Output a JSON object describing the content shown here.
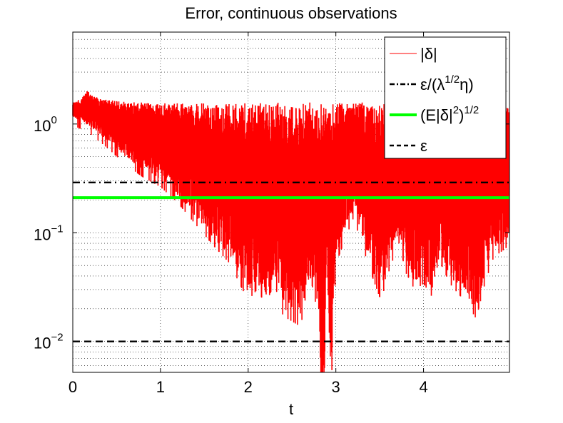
{
  "chart_data": {
    "type": "line",
    "title": "Error, continuous observations",
    "xlabel": "t",
    "ylabel": "",
    "xlim": [
      0,
      4.98
    ],
    "ylim": [
      0.0052,
      7.0
    ],
    "yscale": "log",
    "grid": true,
    "legend_position": "top-right",
    "x_ticks": [
      0,
      1,
      2,
      3,
      4
    ],
    "x_tick_labels": [
      "0",
      "1",
      "2",
      "3",
      "4"
    ],
    "y_ticks": [
      1,
      0.1,
      0.01
    ],
    "y_tick_labels": [
      {
        "base": "10",
        "exp": "0"
      },
      {
        "base": "10",
        "exp": "−1"
      },
      {
        "base": "10",
        "exp": "−2"
      }
    ],
    "series": [
      {
        "name": "|δ|",
        "kind": "noisy-band",
        "color": "#ff0000",
        "upper_envelope": [
          [
            0,
            1.6
          ],
          [
            0.1,
            1.7
          ],
          [
            0.17,
            2.1
          ],
          [
            0.3,
            1.7
          ],
          [
            0.6,
            1.6
          ],
          [
            1.0,
            1.55
          ],
          [
            1.5,
            1.55
          ],
          [
            2.0,
            1.55
          ],
          [
            2.5,
            1.6
          ],
          [
            3.0,
            1.55
          ],
          [
            3.5,
            1.6
          ],
          [
            4.0,
            1.6
          ],
          [
            4.5,
            1.55
          ],
          [
            4.98,
            1.4
          ]
        ],
        "lower_envelope": [
          [
            0,
            1.15
          ],
          [
            0.2,
            0.95
          ],
          [
            0.4,
            0.7
          ],
          [
            0.6,
            0.5
          ],
          [
            0.8,
            0.38
          ],
          [
            1.0,
            0.31
          ],
          [
            1.2,
            0.22
          ],
          [
            1.4,
            0.14
          ],
          [
            1.6,
            0.09
          ],
          [
            1.8,
            0.06
          ],
          [
            1.9,
            0.04
          ],
          [
            2.0,
            0.028
          ],
          [
            2.1,
            0.035
          ],
          [
            2.2,
            0.026
          ],
          [
            2.3,
            0.04
          ],
          [
            2.4,
            0.02
          ],
          [
            2.5,
            0.018
          ],
          [
            2.6,
            0.016
          ],
          [
            2.7,
            0.05
          ],
          [
            2.8,
            0.02
          ],
          [
            2.83,
            0.005
          ],
          [
            2.87,
            0.005
          ],
          [
            2.9,
            0.04
          ],
          [
            2.95,
            0.005
          ],
          [
            3.0,
            0.06
          ],
          [
            3.1,
            0.1
          ],
          [
            3.2,
            0.16
          ],
          [
            3.3,
            0.09
          ],
          [
            3.4,
            0.05
          ],
          [
            3.5,
            0.03
          ],
          [
            3.6,
            0.04
          ],
          [
            3.7,
            0.11
          ],
          [
            3.8,
            0.05
          ],
          [
            3.9,
            0.035
          ],
          [
            4.0,
            0.04
          ],
          [
            4.1,
            0.03
          ],
          [
            4.2,
            0.06
          ],
          [
            4.3,
            0.04
          ],
          [
            4.4,
            0.032
          ],
          [
            4.5,
            0.026
          ],
          [
            4.6,
            0.019
          ],
          [
            4.7,
            0.04
          ],
          [
            4.8,
            0.07
          ],
          [
            4.9,
            0.08
          ],
          [
            4.98,
            0.09
          ]
        ]
      },
      {
        "name": "ε/(λ^1/2η)",
        "kind": "hline",
        "value": 0.29,
        "color": "#000000",
        "dash": "dash-dot"
      },
      {
        "name": "(E|δ|^2)^1/2",
        "kind": "hline",
        "value": 0.21,
        "color": "#00ff00",
        "dash": "solid"
      },
      {
        "name": "ε",
        "kind": "hline",
        "value": 0.01,
        "color": "#000000",
        "dash": "dashed"
      }
    ]
  },
  "legend": {
    "entries": [
      {
        "parts": [
          {
            "t": "|δ|"
          }
        ]
      },
      {
        "parts": [
          {
            "t": "ε/(λ"
          },
          {
            "t": "1/2",
            "sup": true
          },
          {
            "t": "η)"
          }
        ]
      },
      {
        "parts": [
          {
            "t": "(E|δ|"
          },
          {
            "t": "2",
            "sup": true
          },
          {
            "t": ")"
          },
          {
            "t": "1/2",
            "sup": true
          }
        ]
      },
      {
        "parts": [
          {
            "t": "ε"
          }
        ]
      }
    ]
  }
}
